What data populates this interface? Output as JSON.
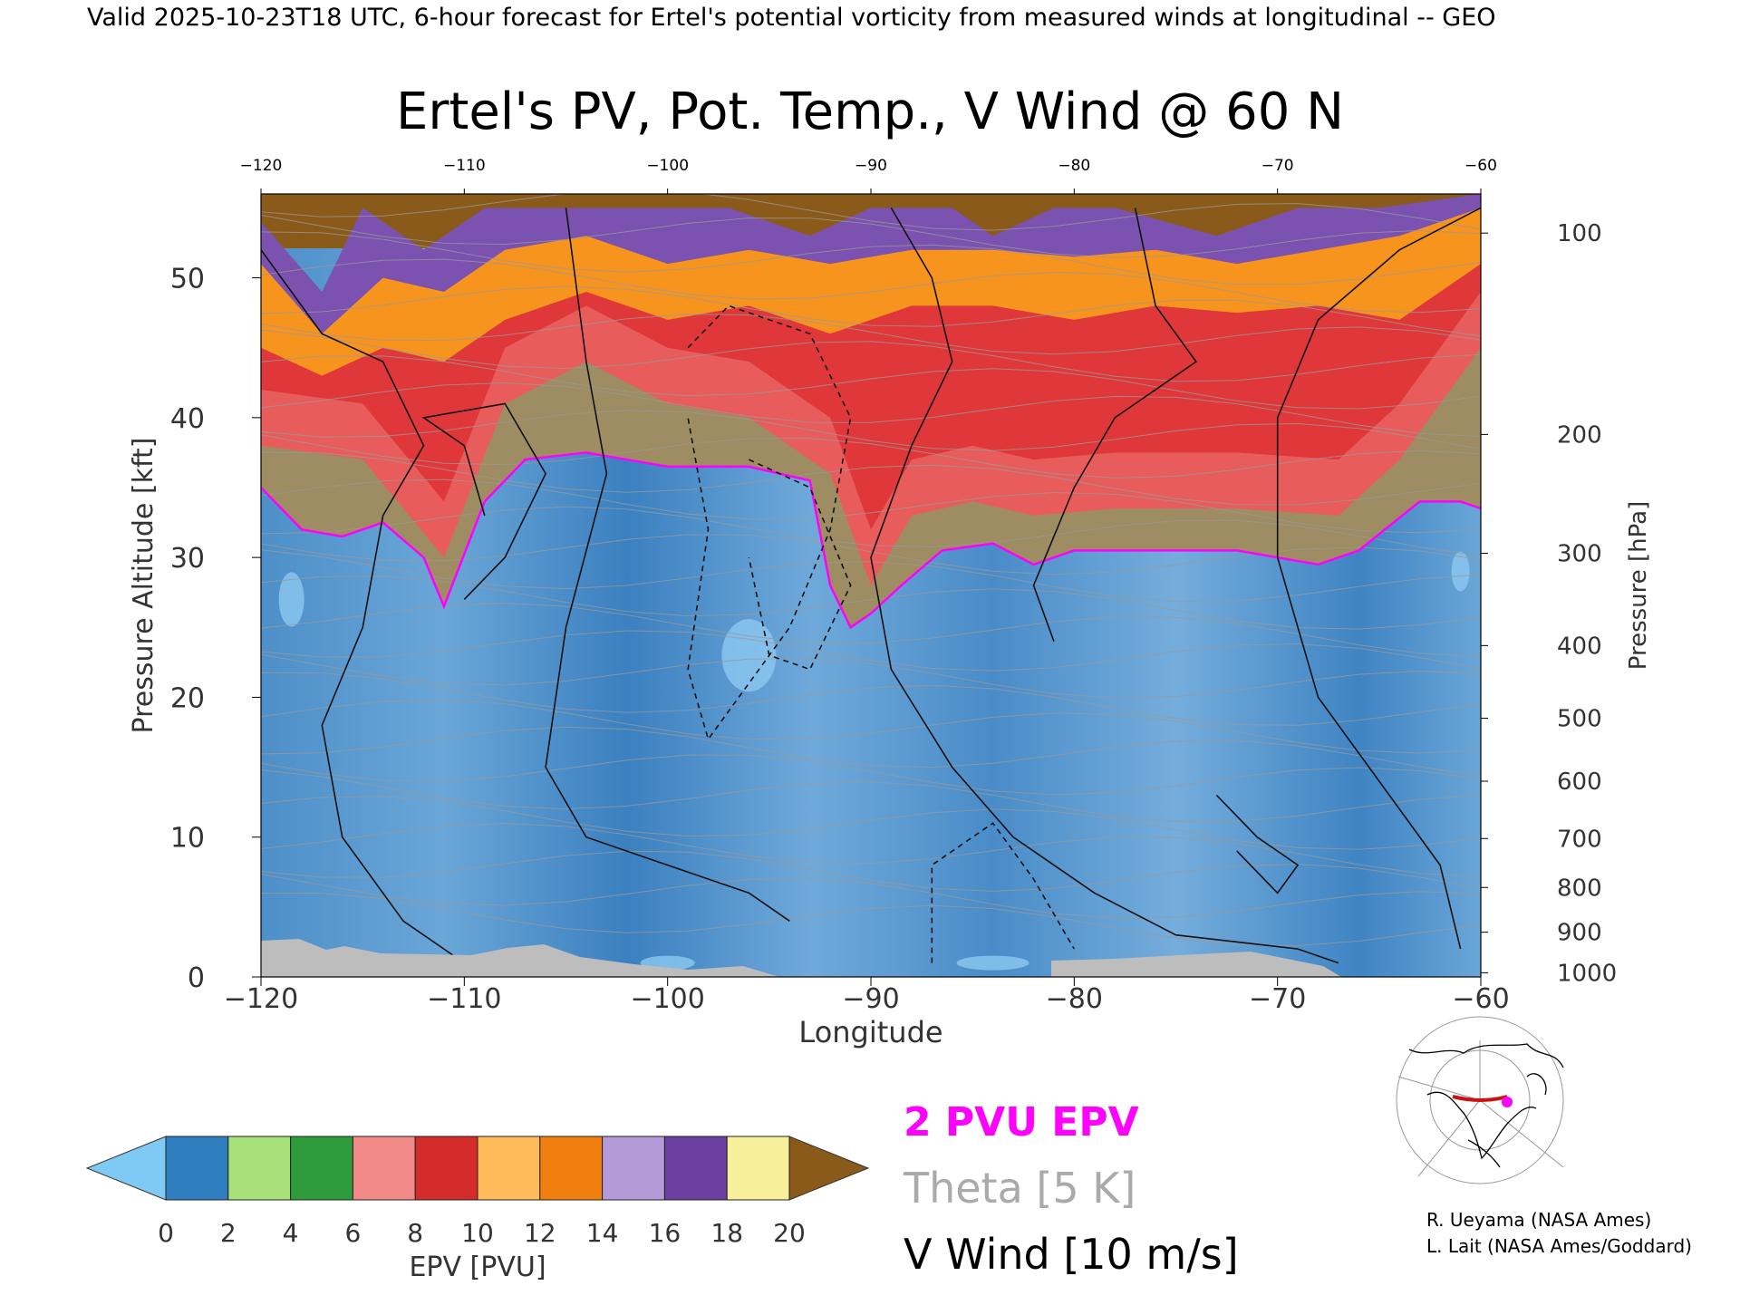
{
  "header": {
    "valid_line": "Valid 2025-10-23T18 UTC, 6-hour forecast for Ertel's potential vorticity from measured winds at longitudinal -- GEO"
  },
  "chart_data": {
    "type": "heatmap",
    "title": "Ertel's PV, Pot. Temp., V Wind @ 60 N",
    "xlabel": "Longitude",
    "ylabel_left": "Pressure Altitude [kft]",
    "ylabel_right": "Pressure [hPa]",
    "xlim": [
      -120,
      -60
    ],
    "ylim_kft": [
      0,
      56
    ],
    "x_ticks": [
      "-120",
      "-110",
      "-100",
      "-90",
      "-80",
      "-70",
      "-60"
    ],
    "x_ticks_top": [
      "-120",
      "-110",
      "-100",
      "-90",
      "-80",
      "-70",
      "-60"
    ],
    "y_ticks_left": [
      "0",
      "10",
      "20",
      "30",
      "40",
      "50"
    ],
    "y_ticks_right": [
      {
        "label": "100",
        "kft": 53.2
      },
      {
        "label": "200",
        "kft": 38.8
      },
      {
        "label": "300",
        "kft": 30.3
      },
      {
        "label": "400",
        "kft": 23.7
      },
      {
        "label": "500",
        "kft": 18.5
      },
      {
        "label": "600",
        "kft": 14.0
      },
      {
        "label": "700",
        "kft": 9.9
      },
      {
        "label": "800",
        "kft": 6.4
      },
      {
        "label": "900",
        "kft": 3.2
      },
      {
        "label": "1000",
        "kft": 0.3
      }
    ],
    "tropopause_2pvu_kft": [
      [
        -120,
        35.0
      ],
      [
        -118,
        32.0
      ],
      [
        -116,
        31.5
      ],
      [
        -114,
        32.5
      ],
      [
        -112,
        30.0
      ],
      [
        -111,
        26.5
      ],
      [
        -109,
        34.0
      ],
      [
        -107,
        37.0
      ],
      [
        -104,
        37.5
      ],
      [
        -100,
        36.5
      ],
      [
        -96,
        36.5
      ],
      [
        -93,
        35.5
      ],
      [
        -92,
        28.0
      ],
      [
        -91,
        25.0
      ],
      [
        -90,
        26.0
      ],
      [
        -88.5,
        28.0
      ],
      [
        -86.5,
        30.5
      ],
      [
        -84,
        31.0
      ],
      [
        -82,
        29.5
      ],
      [
        -80,
        30.5
      ],
      [
        -76,
        30.5
      ],
      [
        -72,
        30.5
      ],
      [
        -68,
        29.5
      ],
      [
        -66,
        30.5
      ],
      [
        -63,
        34.0
      ],
      [
        -61,
        34.0
      ],
      [
        -60,
        33.5
      ]
    ],
    "layer_tops_kft": [
      {
        "name": "green",
        "points": [
          [
            -120,
            38
          ],
          [
            -115,
            37
          ],
          [
            -111,
            30
          ],
          [
            -108,
            41
          ],
          [
            -104,
            44
          ],
          [
            -100,
            41
          ],
          [
            -96,
            40
          ],
          [
            -92,
            36
          ],
          [
            -90,
            28
          ],
          [
            -88,
            33
          ],
          [
            -85,
            34
          ],
          [
            -82,
            33
          ],
          [
            -78,
            33.5
          ],
          [
            -72,
            33.5
          ],
          [
            -67,
            33
          ],
          [
            -64,
            37
          ],
          [
            -62,
            41
          ],
          [
            -60,
            45
          ]
        ]
      },
      {
        "name": "red",
        "points": [
          [
            -120,
            45
          ],
          [
            -117,
            43
          ],
          [
            -114,
            45
          ],
          [
            -111,
            44
          ],
          [
            -108,
            47
          ],
          [
            -104,
            49
          ],
          [
            -100,
            47
          ],
          [
            -96,
            48
          ],
          [
            -92,
            46
          ],
          [
            -88,
            48
          ],
          [
            -84,
            48
          ],
          [
            -80,
            47
          ],
          [
            -76,
            48
          ],
          [
            -72,
            47.5
          ],
          [
            -68,
            48
          ],
          [
            -64,
            47
          ],
          [
            -60,
            51
          ]
        ]
      },
      {
        "name": "orange",
        "points": [
          [
            -120,
            51
          ],
          [
            -117,
            46
          ],
          [
            -114,
            50
          ],
          [
            -111,
            49
          ],
          [
            -108,
            52
          ],
          [
            -104,
            53
          ],
          [
            -100,
            51
          ],
          [
            -96,
            52
          ],
          [
            -92,
            51
          ],
          [
            -88,
            52
          ],
          [
            -84,
            52
          ],
          [
            -80,
            51.5
          ],
          [
            -76,
            52
          ],
          [
            -72,
            51
          ],
          [
            -68,
            52
          ],
          [
            -64,
            53
          ],
          [
            -60,
            55
          ]
        ]
      },
      {
        "name": "purple",
        "points": [
          [
            -120,
            54
          ],
          [
            -117,
            49
          ],
          [
            -115,
            55
          ],
          [
            -112,
            52
          ],
          [
            -109,
            55
          ],
          [
            -103,
            55
          ],
          [
            -97,
            55
          ],
          [
            -93,
            53
          ],
          [
            -90,
            55
          ],
          [
            -86,
            55
          ],
          [
            -84,
            53
          ],
          [
            -81,
            55
          ],
          [
            -78,
            55
          ],
          [
            -73,
            53
          ],
          [
            -69,
            55
          ],
          [
            -65,
            55
          ],
          [
            -60,
            56
          ]
        ]
      }
    ],
    "colorbar": {
      "label": "EPV [PVU]",
      "ticks": [
        "0",
        "2",
        "4",
        "6",
        "8",
        "10",
        "12",
        "14",
        "16",
        "18",
        "20"
      ],
      "colors": [
        "#2f7fc0",
        "#a8e07a",
        "#2e9c3a",
        "#f28a8a",
        "#d42b2b",
        "#ffba5a",
        "#f07f10",
        "#b49ad6",
        "#6a3fa0",
        "#f7ef9a"
      ],
      "under_color": "#7fc9f5",
      "over_color": "#8a5a1a"
    }
  },
  "legend": {
    "pvu_label": "2 PVU EPV",
    "theta_label": "Theta [5 K]",
    "wind_label": "V Wind [10 m/s]",
    "pvu_color": "#ff00ff",
    "theta_color": "#aaaaaa",
    "wind_color": "#000000"
  },
  "credits": {
    "line1": "R. Ueyama (NASA Ames)",
    "line2": "L. Lait (NASA Ames/Goddard)"
  }
}
